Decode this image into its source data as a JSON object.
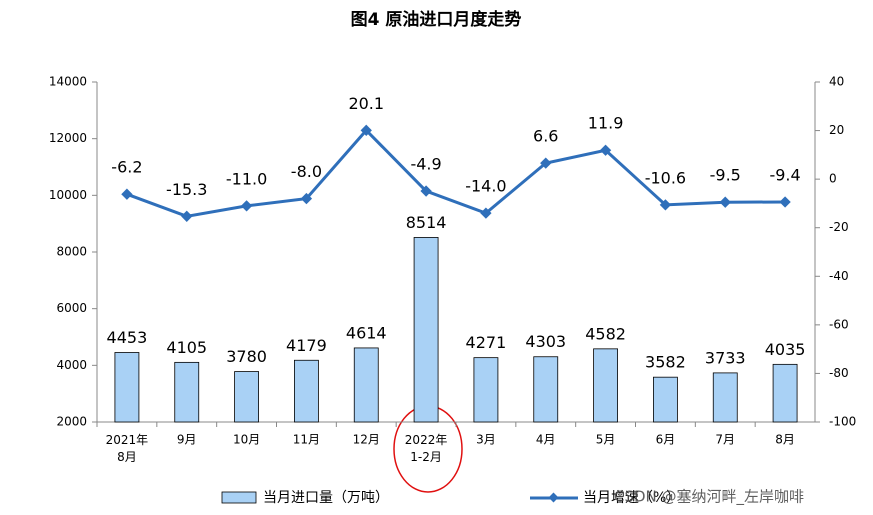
{
  "chart_data": {
    "type": "bar-line",
    "title": "图4  原油进口月度走势",
    "categories": [
      "2021年\n8月",
      "9月",
      "10月",
      "11月",
      "12月",
      "2022年\n1-2月",
      "3月",
      "4月",
      "5月",
      "6月",
      "7月",
      "8月"
    ],
    "series": [
      {
        "name": "当月进口量（万吨）",
        "type": "bar",
        "color": "#a9d1f5",
        "values": [
          4453,
          4105,
          3780,
          4179,
          4614,
          8514,
          4271,
          4303,
          4582,
          3582,
          3733,
          4035
        ]
      },
      {
        "name": "当月增速（%）",
        "type": "line",
        "axis": "y2",
        "color": "#2f6fba",
        "values": [
          -6.2,
          -15.3,
          -11.0,
          -8.0,
          20.1,
          -4.9,
          -14.0,
          6.6,
          11.9,
          -10.6,
          -9.5,
          -9.4
        ],
        "value_labels": [
          "-6.2",
          "-15.3",
          "-11.0",
          "-8.0",
          "20.1",
          "-4.9",
          "-14.0",
          "6.6",
          "11.9",
          "-10.6",
          "-9.5",
          "-9.4"
        ]
      }
    ],
    "ylim": [
      2000,
      14000
    ],
    "yticks": [
      2000,
      4000,
      6000,
      8000,
      10000,
      12000,
      14000
    ],
    "y2lim": [
      -100,
      40
    ],
    "y2ticks": [
      -100,
      -80,
      -60,
      -40,
      -20,
      0,
      20,
      40
    ],
    "watermark": "CSDN @塞纳河畔_左岸咖啡"
  }
}
